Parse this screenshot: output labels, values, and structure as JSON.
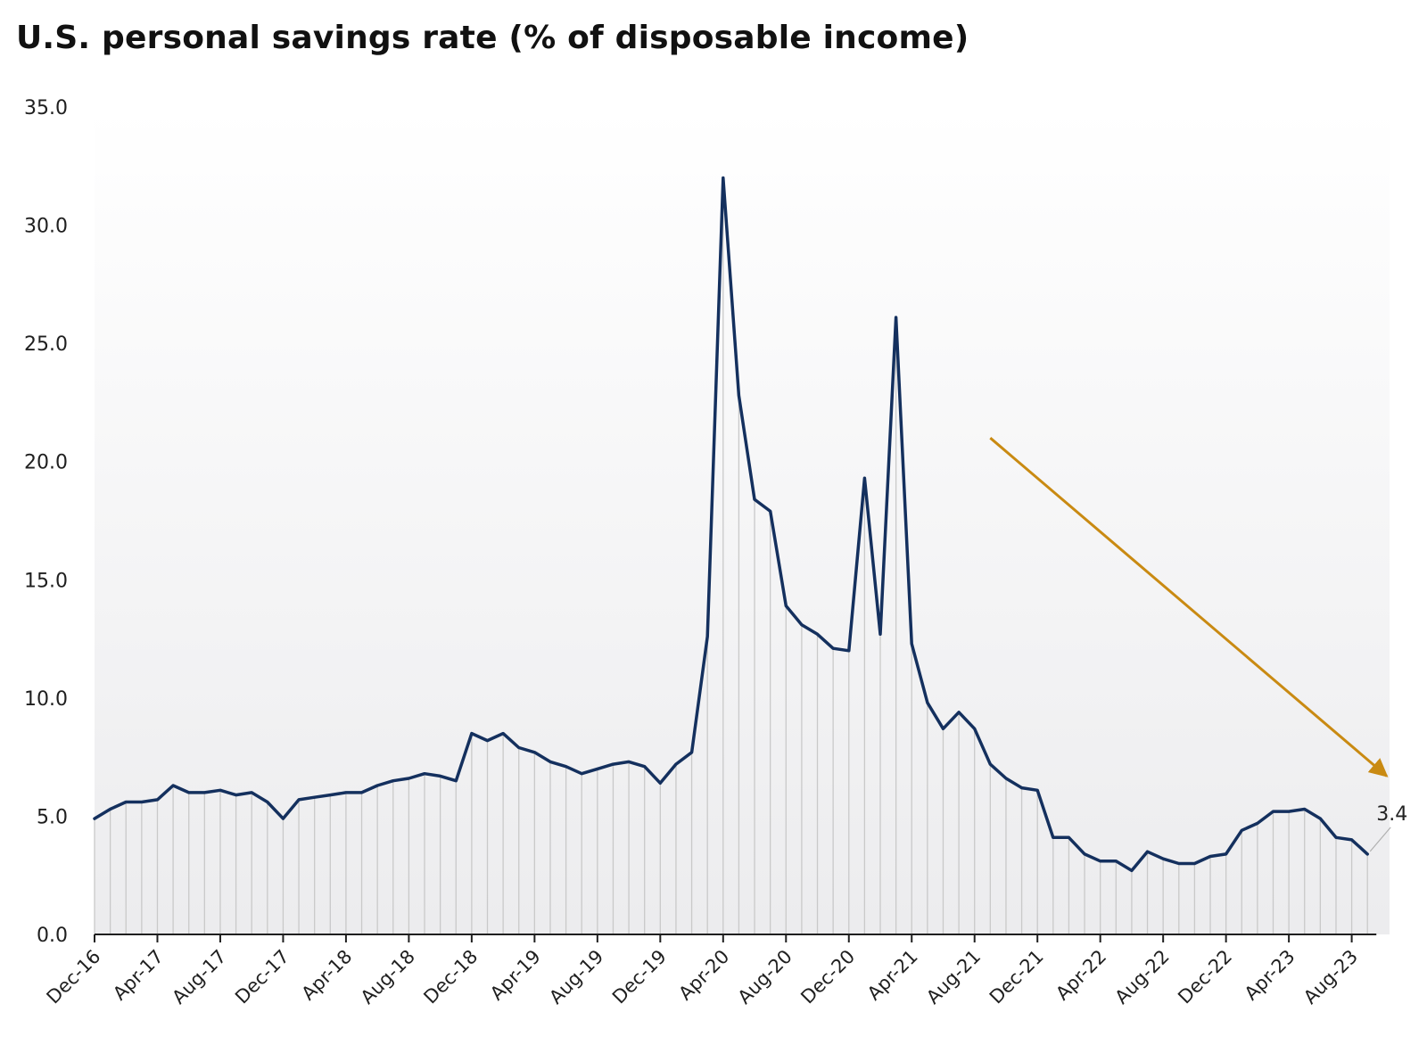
{
  "title": "U.S. personal savings rate (% of disposable income)",
  "colors": {
    "line": "#14305e",
    "drop": "#c9c9c9",
    "arrow": "#c98a12",
    "axis": "#1f1f1f",
    "background_top": "#ffffff",
    "background_bottom": "#ececee"
  },
  "chart_data": {
    "type": "line",
    "title": "U.S. personal savings rate (% of disposable income)",
    "xlabel": "",
    "ylabel": "",
    "ylim": [
      0,
      35
    ],
    "yticks": [
      "0.0",
      "5.0",
      "10.0",
      "15.0",
      "20.0",
      "25.0",
      "30.0",
      "35.0"
    ],
    "grid": false,
    "legend": "none",
    "x_start": "Dec-16",
    "x_end": "Oct-23",
    "xtick_labels": [
      "Dec-16",
      "Apr-17",
      "Aug-17",
      "Dec-17",
      "Apr-18",
      "Aug-18",
      "Dec-18",
      "Apr-19",
      "Aug-19",
      "Dec-19",
      "Apr-20",
      "Aug-20",
      "Dec-20",
      "Apr-21",
      "Aug-21",
      "Dec-21",
      "Apr-22",
      "Aug-22",
      "Dec-22",
      "Apr-23",
      "Aug-23"
    ],
    "series": [
      {
        "values": [
          4.9,
          5.3,
          5.6,
          5.6,
          5.7,
          6.3,
          6.0,
          6.0,
          6.1,
          5.9,
          6.0,
          5.6,
          4.9,
          5.7,
          5.8,
          5.9,
          6.0,
          6.0,
          6.3,
          6.5,
          6.6,
          6.8,
          6.7,
          6.5,
          8.5,
          8.2,
          8.5,
          7.9,
          7.7,
          7.3,
          7.1,
          6.8,
          7.0,
          7.2,
          7.3,
          7.1,
          6.4,
          7.2,
          7.7,
          12.6,
          32.0,
          22.8,
          18.4,
          17.9,
          13.9,
          13.1,
          12.7,
          12.1,
          12.0,
          19.3,
          12.7,
          26.1,
          12.3,
          9.8,
          8.7,
          9.4,
          8.7,
          7.2,
          6.6,
          6.2,
          6.1,
          4.1,
          4.1,
          3.4,
          3.1,
          3.1,
          2.7,
          3.5,
          3.2,
          3.0,
          3.0,
          3.3,
          3.4,
          4.4,
          4.7,
          5.2,
          5.2,
          5.3,
          4.9,
          4.1,
          4.0,
          3.4
        ]
      }
    ],
    "annotations": [
      {
        "type": "label",
        "text": "3.4",
        "at_point": "last"
      },
      {
        "type": "arrow",
        "from": {
          "x": "Sep-21",
          "y": 21.0
        },
        "to": {
          "x": "Oct-23",
          "y": 6.7
        }
      }
    ]
  }
}
